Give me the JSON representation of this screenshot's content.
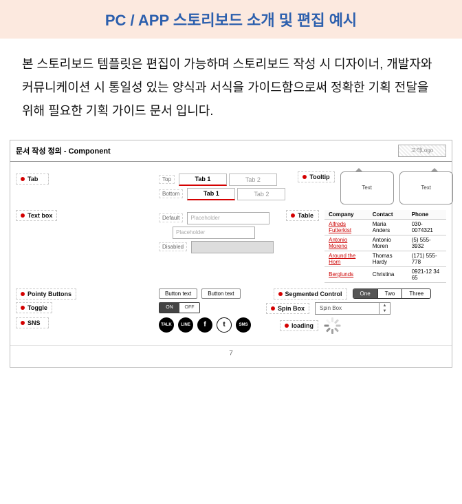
{
  "title": "PC / APP 스토리보드 소개 및 편집 예시",
  "intro": "본 스토리보드 템플릿은 편집이 가능하며 스토리보드 작성 시 디자이너, 개발자와 커뮤니케이션 시 통일성 있는 양식과 서식을 가이드함으로써 정확한 기획 전달을 위해 필요한 기획 가이드 문서 입니다.",
  "colors": {
    "title_bg": "#fce9df",
    "title_text": "#2c5fad",
    "accent_red": "#d40000",
    "border": "#bbbbbb",
    "text": "#111111"
  },
  "board": {
    "header": "문서 작성 정의 - Component",
    "logo_placeholder": "고객Logo",
    "page_number": "7",
    "labels": {
      "tab": "Tab",
      "tooltip": "Tooltip",
      "textbox": "Text box",
      "table": "Table",
      "pointy_buttons": "Pointy Buttons",
      "segmented": "Segmented Control",
      "toggle": "Toggle",
      "spinbox": "Spin Box",
      "sns": "SNS",
      "loading": "loading"
    },
    "sublabels": {
      "top": "Top",
      "bottom": "Bottom",
      "default": "Default",
      "disabled": "Disabled"
    },
    "tabs": {
      "tab1": "Tab 1",
      "tab2": "Tab 2"
    },
    "tooltip_text": "Text",
    "textbox": {
      "placeholder": "Placeholder"
    },
    "table": {
      "columns": [
        "Company",
        "Contact",
        "Phone"
      ],
      "rows": [
        [
          "Alfreds Futterkist",
          "Maria Anders",
          "030-0074321"
        ],
        [
          "Antonio Moreno",
          "Antonio Moren",
          "(5) 555-3932"
        ],
        [
          "Around the Horn",
          "Thomas Hardy",
          "(171) 555-778"
        ],
        [
          "Berglunds",
          "Christina",
          "0921-12 34 65"
        ]
      ],
      "link_cols": [
        0
      ]
    },
    "button_text": "Button text",
    "segmented": {
      "items": [
        "One",
        "Two",
        "Three"
      ],
      "active": 0
    },
    "toggle": {
      "on": "ON",
      "off": "OFF"
    },
    "spinbox_text": "Spin Box",
    "sns_icons": [
      "TALK",
      "LINE",
      "f",
      "t",
      "SMS"
    ]
  }
}
